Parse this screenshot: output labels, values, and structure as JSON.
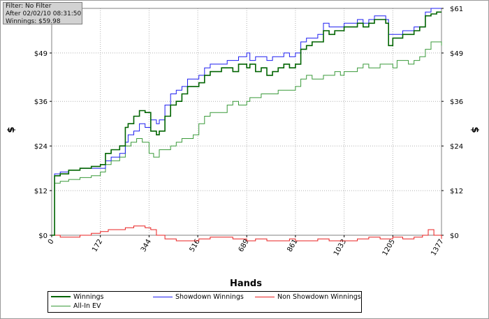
{
  "info": {
    "filter": "Filter: No Filter",
    "after": "After 02/02/10 08:31:50",
    "winnings": "Winnings: $59.98"
  },
  "colors": {
    "winnings": "#006400",
    "showdown": "#1e1ef0",
    "non_showdown": "#e82020",
    "allin_ev": "#3a9a3a",
    "grid": "#b0b0b0"
  },
  "chart_data": {
    "type": "line",
    "xlabel": "Hands",
    "ylabel_left": "$",
    "ylabel_right": "$",
    "xlim": [
      0,
      1377
    ],
    "ylim": [
      0,
      61
    ],
    "x_ticks": [
      "0",
      "172",
      "344",
      "516",
      "689",
      "861",
      "1033",
      "1205",
      "1377"
    ],
    "y_ticks_left": [
      "$0",
      "$12",
      "$24",
      "$36",
      "$49"
    ],
    "y_ticks_right": [
      "$0",
      "$12",
      "$24",
      "$36",
      "$49",
      "$61"
    ],
    "grid": true,
    "legend_position": "bottom",
    "series": [
      {
        "name": "Winnings",
        "x": [
          0,
          10,
          30,
          60,
          100,
          140,
          172,
          190,
          210,
          240,
          260,
          270,
          290,
          310,
          330,
          350,
          370,
          380,
          400,
          420,
          440,
          460,
          480,
          500,
          520,
          540,
          560,
          580,
          600,
          620,
          640,
          660,
          689,
          700,
          720,
          740,
          760,
          780,
          800,
          820,
          840,
          861,
          880,
          900,
          920,
          940,
          960,
          980,
          1000,
          1020,
          1033,
          1060,
          1080,
          1100,
          1120,
          1140,
          1160,
          1180,
          1190,
          1205,
          1220,
          1240,
          1260,
          1280,
          1300,
          1320,
          1340,
          1360,
          1377
        ],
        "y": [
          0,
          16,
          16.5,
          17.5,
          18,
          18.5,
          19,
          22,
          23,
          24,
          29,
          30,
          32,
          33.5,
          33,
          28,
          27,
          28,
          32,
          35,
          36,
          38,
          40,
          40,
          41,
          43,
          44,
          44,
          45,
          45,
          44,
          46,
          45,
          46,
          44,
          45,
          43,
          44,
          45,
          46,
          45,
          46,
          50,
          51,
          52,
          52,
          55,
          54,
          55,
          55,
          56,
          56,
          57,
          56,
          57,
          58,
          58,
          57,
          51,
          53,
          53,
          54,
          54,
          55,
          56,
          59,
          59.5,
          60,
          60
        ]
      },
      {
        "name": "Showdown Winnings",
        "x": [
          0,
          10,
          30,
          60,
          100,
          140,
          172,
          190,
          210,
          240,
          260,
          270,
          290,
          310,
          330,
          350,
          370,
          380,
          400,
          420,
          440,
          460,
          480,
          500,
          520,
          540,
          560,
          580,
          600,
          620,
          640,
          660,
          689,
          700,
          720,
          740,
          760,
          780,
          800,
          820,
          840,
          861,
          880,
          900,
          920,
          940,
          960,
          980,
          1000,
          1020,
          1033,
          1060,
          1080,
          1100,
          1120,
          1140,
          1160,
          1180,
          1190,
          1205,
          1220,
          1240,
          1260,
          1280,
          1300,
          1320,
          1340,
          1360,
          1377
        ],
        "y": [
          0,
          16.5,
          17,
          17.5,
          18,
          18,
          18,
          20,
          21,
          22,
          25,
          27,
          28,
          30,
          29,
          31,
          30,
          31,
          35,
          38,
          39,
          40,
          42,
          42,
          43,
          45,
          46,
          46,
          46,
          47,
          47,
          48,
          49,
          47,
          48,
          48,
          47,
          48,
          48,
          49,
          48,
          49,
          52,
          53,
          53,
          54,
          57,
          56,
          56,
          56,
          57,
          57,
          58,
          57,
          58,
          59,
          59,
          58,
          54,
          54,
          54,
          55,
          55,
          56,
          56,
          60,
          61,
          61,
          61
        ]
      },
      {
        "name": "Non Showdown Winnings",
        "x": [
          0,
          30,
          60,
          100,
          140,
          172,
          200,
          240,
          260,
          290,
          310,
          330,
          350,
          370,
          400,
          440,
          480,
          520,
          560,
          600,
          640,
          689,
          720,
          760,
          800,
          840,
          861,
          900,
          940,
          980,
          1033,
          1080,
          1120,
          1160,
          1205,
          1240,
          1280,
          1310,
          1330,
          1350,
          1377
        ],
        "y": [
          0,
          -0.5,
          -0.5,
          0,
          0.5,
          1,
          1.5,
          1.5,
          2,
          2.5,
          2.5,
          2,
          1.5,
          0,
          -1,
          -1.5,
          -1.5,
          -1,
          -0.5,
          -0.5,
          -1,
          -1.5,
          -1,
          -1.5,
          -1.5,
          -1,
          -1.5,
          -1.5,
          -1,
          -1.5,
          -1.5,
          -1,
          -0.5,
          -1,
          -0.5,
          -1,
          -0.5,
          0,
          1.5,
          0,
          -1
        ]
      },
      {
        "name": "All-In EV",
        "x": [
          0,
          10,
          30,
          60,
          100,
          140,
          172,
          190,
          210,
          240,
          260,
          280,
          300,
          320,
          344,
          360,
          380,
          400,
          420,
          440,
          460,
          480,
          500,
          520,
          540,
          560,
          580,
          600,
          620,
          640,
          660,
          689,
          700,
          720,
          740,
          760,
          780,
          800,
          820,
          840,
          861,
          880,
          900,
          920,
          940,
          960,
          980,
          1000,
          1020,
          1033,
          1060,
          1080,
          1100,
          1120,
          1140,
          1160,
          1180,
          1205,
          1220,
          1240,
          1260,
          1280,
          1300,
          1320,
          1340,
          1360,
          1377
        ],
        "y": [
          0,
          14,
          14.5,
          15,
          15.5,
          16,
          17,
          19,
          20,
          21,
          24,
          25,
          26,
          25,
          22,
          21,
          23,
          23,
          24,
          25,
          26,
          26,
          27,
          30,
          32,
          33,
          33,
          33,
          35,
          36,
          35,
          36,
          37,
          37,
          38,
          38,
          38,
          39,
          39,
          39,
          40,
          42,
          43,
          42,
          42,
          43,
          43,
          44,
          43,
          44,
          44,
          45,
          46,
          45,
          45,
          46,
          46,
          45,
          47,
          47,
          46,
          47,
          48,
          50,
          52,
          52,
          51
        ]
      }
    ]
  }
}
